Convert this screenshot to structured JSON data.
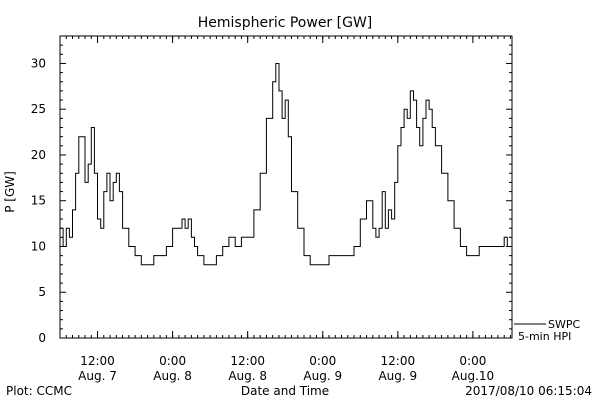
{
  "chart_data": {
    "type": "line",
    "title": "Hemispheric Power [GW]",
    "xlabel": "Date and Time",
    "ylabel": "P [GW]",
    "ylim": [
      0,
      33
    ],
    "yticks": [
      0,
      5,
      10,
      15,
      20,
      25,
      30
    ],
    "xlim": [
      "2017-08-07 06:00",
      "2017-08-10 06:15"
    ],
    "xticks": [
      {
        "time": "2017-08-07 12:00",
        "line1": "12:00",
        "line2": "Aug. 7"
      },
      {
        "time": "2017-08-08 00:00",
        "line1": "0:00",
        "line2": "Aug. 8"
      },
      {
        "time": "2017-08-08 12:00",
        "line1": "12:00",
        "line2": "Aug. 8"
      },
      {
        "time": "2017-08-09 00:00",
        "line1": "0:00",
        "line2": "Aug. 9"
      },
      {
        "time": "2017-08-09 12:00",
        "line1": "12:00",
        "line2": "Aug. 9"
      },
      {
        "time": "2017-08-10 00:00",
        "line1": "0:00",
        "line2": "Aug.10"
      }
    ],
    "grid": false,
    "legend": {
      "position": "bottom-right",
      "entries": [
        "SWPC",
        "5-min HPI"
      ]
    },
    "series": [
      {
        "name": "SWPC",
        "x": [
          "2017-08-07 06:00",
          "2017-08-07 06:30",
          "2017-08-07 07:00",
          "2017-08-07 07:30",
          "2017-08-07 08:00",
          "2017-08-07 08:30",
          "2017-08-07 09:00",
          "2017-08-07 09:30",
          "2017-08-07 10:00",
          "2017-08-07 10:30",
          "2017-08-07 11:00",
          "2017-08-07 11:30",
          "2017-08-07 12:00",
          "2017-08-07 12:30",
          "2017-08-07 13:00",
          "2017-08-07 13:30",
          "2017-08-07 14:00",
          "2017-08-07 14:30",
          "2017-08-07 15:00",
          "2017-08-07 15:30",
          "2017-08-07 16:00",
          "2017-08-07 17:00",
          "2017-08-07 18:00",
          "2017-08-07 19:00",
          "2017-08-07 20:00",
          "2017-08-07 21:00",
          "2017-08-07 22:00",
          "2017-08-07 23:00",
          "2017-08-08 00:00",
          "2017-08-08 01:00",
          "2017-08-08 01:30",
          "2017-08-08 02:00",
          "2017-08-08 02:30",
          "2017-08-08 03:00",
          "2017-08-08 03:30",
          "2017-08-08 04:00",
          "2017-08-08 05:00",
          "2017-08-08 06:00",
          "2017-08-08 07:00",
          "2017-08-08 08:00",
          "2017-08-08 09:00",
          "2017-08-08 10:00",
          "2017-08-08 11:00",
          "2017-08-08 12:00",
          "2017-08-08 13:00",
          "2017-08-08 14:00",
          "2017-08-08 15:00",
          "2017-08-08 16:00",
          "2017-08-08 16:30",
          "2017-08-08 17:00",
          "2017-08-08 17:30",
          "2017-08-08 18:00",
          "2017-08-08 18:30",
          "2017-08-08 19:00",
          "2017-08-08 20:00",
          "2017-08-08 21:00",
          "2017-08-08 22:00",
          "2017-08-08 23:00",
          "2017-08-09 00:00",
          "2017-08-09 01:00",
          "2017-08-09 02:00",
          "2017-08-09 03:00",
          "2017-08-09 04:00",
          "2017-08-09 05:00",
          "2017-08-09 06:00",
          "2017-08-09 07:00",
          "2017-08-09 08:00",
          "2017-08-09 08:30",
          "2017-08-09 09:00",
          "2017-08-09 09:30",
          "2017-08-09 10:00",
          "2017-08-09 10:30",
          "2017-08-09 11:00",
          "2017-08-09 11:30",
          "2017-08-09 12:00",
          "2017-08-09 12:30",
          "2017-08-09 13:00",
          "2017-08-09 13:30",
          "2017-08-09 14:00",
          "2017-08-09 14:30",
          "2017-08-09 15:00",
          "2017-08-09 15:30",
          "2017-08-09 16:00",
          "2017-08-09 16:30",
          "2017-08-09 17:00",
          "2017-08-09 17:30",
          "2017-08-09 18:00",
          "2017-08-09 19:00",
          "2017-08-09 20:00",
          "2017-08-09 21:00",
          "2017-08-09 22:00",
          "2017-08-09 23:00",
          "2017-08-10 00:00",
          "2017-08-10 01:00",
          "2017-08-10 02:00",
          "2017-08-10 03:00",
          "2017-08-10 04:00",
          "2017-08-10 05:00",
          "2017-08-10 05:30",
          "2017-08-10 06:00"
        ],
        "values": [
          12,
          10,
          12,
          11,
          14,
          18,
          22,
          22,
          17,
          19,
          23,
          18,
          13,
          12,
          16,
          18,
          15,
          17,
          18,
          16,
          12,
          10,
          9,
          8,
          8,
          9,
          9,
          10,
          12,
          12,
          13,
          12,
          13,
          11,
          10,
          9,
          8,
          8,
          9,
          10,
          11,
          10,
          11,
          11,
          14,
          18,
          24,
          28,
          30,
          27,
          24,
          26,
          22,
          16,
          12,
          9,
          8,
          8,
          8,
          9,
          9,
          9,
          9,
          10,
          13,
          15,
          12,
          11,
          12,
          16,
          12,
          14,
          13,
          17,
          21,
          23,
          25,
          24,
          27,
          26,
          23,
          21,
          24,
          26,
          25,
          23,
          21,
          18,
          15,
          12,
          10,
          9,
          9,
          10,
          10,
          10,
          10,
          11,
          10,
          10
        ]
      }
    ]
  },
  "footer": {
    "plot_credit": "Plot: CCMC",
    "timestamp": "2017/08/10 06:15:04"
  }
}
